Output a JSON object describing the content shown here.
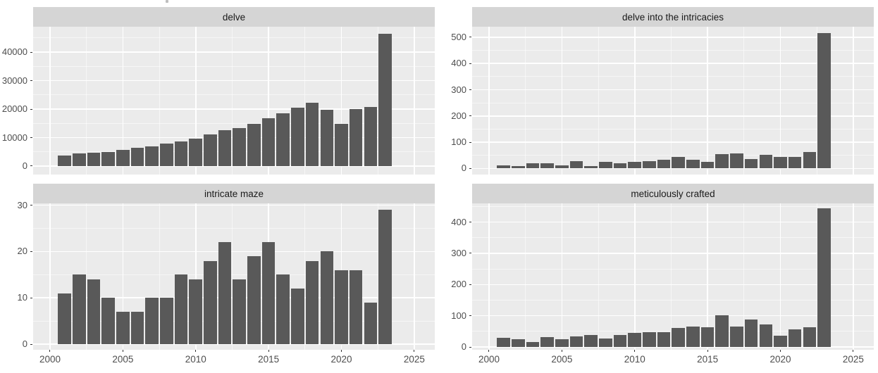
{
  "figure": {
    "background": "#ffffff",
    "panel_bg": "#ebebeb",
    "strip_bg": "#d5d5d5",
    "bar_color": "#595959",
    "grid_major_color": "#ffffff",
    "axis_text_color": "#4d4d4d",
    "strip_text_color": "#1a1a1a"
  },
  "chart_data": [
    {
      "type": "bar",
      "title": "delve",
      "x": [
        2001,
        2002,
        2003,
        2004,
        2005,
        2006,
        2007,
        2008,
        2009,
        2010,
        2011,
        2012,
        2013,
        2014,
        2015,
        2016,
        2017,
        2018,
        2019,
        2020,
        2021,
        2022,
        2023
      ],
      "values": [
        3600,
        4400,
        4700,
        5000,
        5800,
        6500,
        7000,
        7900,
        8700,
        9700,
        11000,
        12500,
        13400,
        14700,
        16700,
        18400,
        20400,
        22200,
        19800,
        14700,
        19900,
        20700,
        46500
      ],
      "x_ticks": [
        2000,
        2005,
        2010,
        2015,
        2020,
        2025
      ],
      "x_minor_ticks": [
        2002.5,
        2007.5,
        2012.5,
        2017.5,
        2022.5
      ],
      "y_ticks": [
        0,
        10000,
        20000,
        30000,
        40000
      ],
      "y_minor_ticks": [
        5000,
        15000,
        25000,
        35000,
        45000
      ],
      "xlim": [
        1998.84,
        2026.41
      ],
      "ylim": [
        -2963,
        48889
      ],
      "show_x_labels": false,
      "grid": true,
      "legend": "none",
      "xlabel": "",
      "ylabel": ""
    },
    {
      "type": "bar",
      "title": "delve into the intricacies",
      "x": [
        2001,
        2002,
        2003,
        2004,
        2005,
        2006,
        2007,
        2008,
        2009,
        2010,
        2011,
        2012,
        2013,
        2014,
        2015,
        2016,
        2017,
        2018,
        2019,
        2020,
        2021,
        2022,
        2023
      ],
      "values": [
        13,
        10,
        19,
        20,
        13,
        27,
        9,
        25,
        20,
        26,
        27,
        34,
        43,
        32,
        24,
        55,
        57,
        36,
        53,
        44,
        45,
        63,
        515
      ],
      "x_ticks": [
        2000,
        2005,
        2010,
        2015,
        2020,
        2025
      ],
      "x_minor_ticks": [
        2002.5,
        2007.5,
        2012.5,
        2017.5,
        2022.5
      ],
      "y_ticks": [
        0,
        100,
        200,
        300,
        400,
        500
      ],
      "y_minor_ticks": [
        50,
        150,
        250,
        350,
        450
      ],
      "xlim": [
        1998.84,
        2026.41
      ],
      "ylim": [
        -23,
        540
      ],
      "show_x_labels": false,
      "grid": true,
      "legend": "none",
      "xlabel": "",
      "ylabel": ""
    },
    {
      "type": "bar",
      "title": "intricate maze",
      "x": [
        2001,
        2002,
        2003,
        2004,
        2005,
        2006,
        2007,
        2008,
        2009,
        2010,
        2011,
        2012,
        2013,
        2014,
        2015,
        2016,
        2017,
        2018,
        2019,
        2020,
        2021,
        2022,
        2023
      ],
      "values": [
        11,
        15,
        14,
        10,
        7,
        7,
        10,
        10,
        15,
        14,
        18,
        22,
        14,
        19,
        22,
        15,
        12,
        18,
        20,
        16,
        16,
        9,
        29
      ],
      "x_ticks": [
        2000,
        2005,
        2010,
        2015,
        2020,
        2025
      ],
      "x_minor_ticks": [
        2002.5,
        2007.5,
        2012.5,
        2017.5,
        2022.5
      ],
      "y_ticks": [
        0,
        10,
        20,
        30
      ],
      "y_minor_ticks": [
        5,
        15,
        25
      ],
      "xlim": [
        1998.84,
        2026.41
      ],
      "ylim": [
        -1.2,
        30.4
      ],
      "show_x_labels": true,
      "grid": true,
      "legend": "none",
      "xlabel": "",
      "ylabel": ""
    },
    {
      "type": "bar",
      "title": "meticulously crafted",
      "x": [
        2001,
        2002,
        2003,
        2004,
        2005,
        2006,
        2007,
        2008,
        2009,
        2010,
        2011,
        2012,
        2013,
        2014,
        2015,
        2016,
        2017,
        2018,
        2019,
        2020,
        2021,
        2022,
        2023
      ],
      "values": [
        29,
        24,
        15,
        32,
        25,
        33,
        38,
        28,
        39,
        45,
        48,
        48,
        62,
        65,
        63,
        101,
        66,
        87,
        72,
        37,
        57,
        63,
        445
      ],
      "x_ticks": [
        2000,
        2005,
        2010,
        2015,
        2020,
        2025
      ],
      "x_minor_ticks": [
        2002.5,
        2007.5,
        2012.5,
        2017.5,
        2022.5
      ],
      "y_ticks": [
        0,
        100,
        200,
        300,
        400
      ],
      "y_minor_ticks": [
        50,
        150,
        250,
        350,
        450
      ],
      "xlim": [
        1998.84,
        2026.41
      ],
      "ylim": [
        -9,
        460
      ],
      "show_x_labels": true,
      "grid": true,
      "legend": "none",
      "xlabel": "",
      "ylabel": ""
    }
  ]
}
